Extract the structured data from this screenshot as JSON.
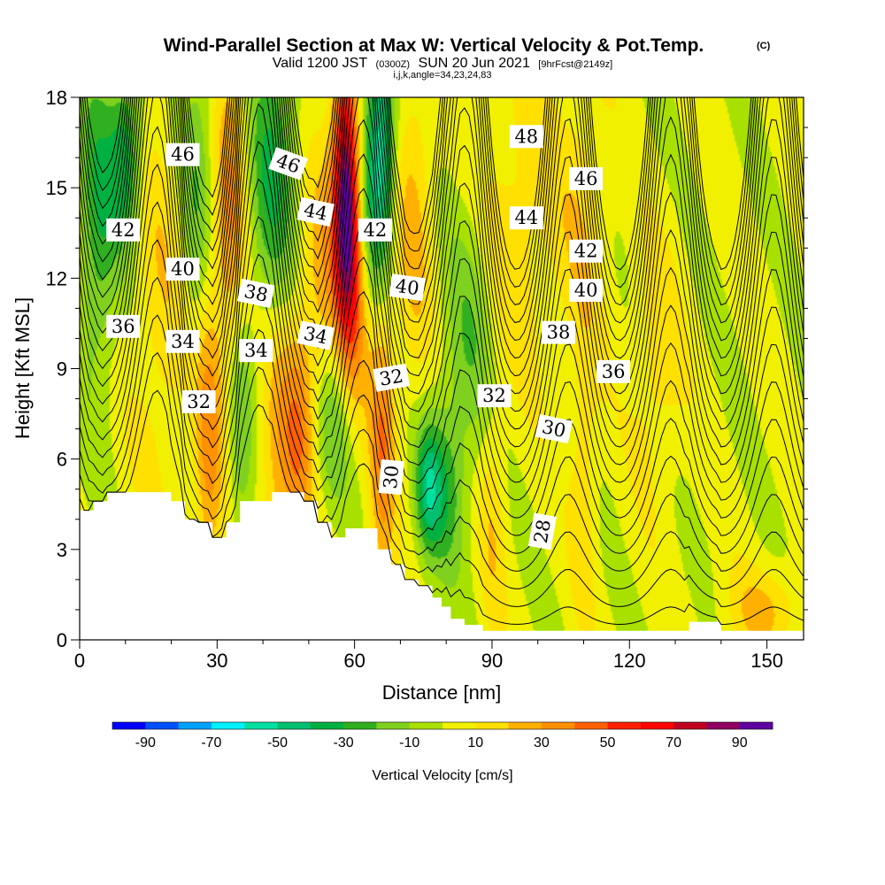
{
  "chart_data": {
    "type": "heatmap",
    "title": "Wind-Parallel Section at Max W: Vertical Velocity & Pot.Temp.",
    "title_suffix": "(C)",
    "subtitle_main": "Valid 1200 JST",
    "subtitle_utc": "(0300Z)",
    "subtitle_date": "SUN 20 Jun 2021",
    "subtitle_fcst": "[9hrFcst@2149z]",
    "subtitle_line2": "i,j,k,angle=34,23,24,83",
    "xlabel": "Distance [nm]",
    "ylabel": "Height [Kft MSL]",
    "xlim": [
      0,
      158
    ],
    "ylim": [
      0,
      18
    ],
    "x_ticks": [
      0,
      30,
      60,
      90,
      120,
      150
    ],
    "y_ticks": [
      0,
      3,
      6,
      9,
      12,
      15,
      18
    ],
    "colorbar": {
      "label": "Vertical Velocity [cm/s]",
      "tick_values": [
        -90,
        -70,
        -50,
        -30,
        -10,
        10,
        30,
        50,
        70,
        90
      ],
      "tick_labels": [
        "-90",
        "-70",
        "-50",
        "-30",
        "-10",
        "10",
        "30",
        "50",
        "70",
        "90"
      ],
      "bounds": [
        -100,
        -90,
        -80,
        -70,
        -60,
        -50,
        -40,
        -30,
        -20,
        -10,
        0,
        10,
        20,
        30,
        40,
        50,
        60,
        70,
        80,
        90,
        100
      ],
      "colors": [
        "#0000ff",
        "#0050ff",
        "#00a0ff",
        "#00f0ff",
        "#00e0a0",
        "#00c070",
        "#00b040",
        "#30b020",
        "#80d020",
        "#a8e000",
        "#f0f000",
        "#ffe000",
        "#ffb000",
        "#ff9000",
        "#ff6000",
        "#ff2000",
        "#ff0000",
        "#c00020",
        "#900060",
        "#6000a0"
      ]
    },
    "velocity_features": [
      {
        "x": 4,
        "z": 14,
        "w": -30,
        "sx": 3,
        "sz": 4
      },
      {
        "x": 10,
        "z": 16,
        "w": -40,
        "sx": 2.5,
        "sz": 2
      },
      {
        "x": 18,
        "z": 11,
        "w": 15,
        "sx": 5,
        "sz": 5
      },
      {
        "x": 26,
        "z": 15,
        "w": -25,
        "sx": 3,
        "sz": 4
      },
      {
        "x": 28,
        "z": 7,
        "w": 30,
        "sx": 2,
        "sz": 4
      },
      {
        "x": 33,
        "z": 14,
        "w": 30,
        "sx": 3,
        "sz": 5
      },
      {
        "x": 35,
        "z": 7,
        "w": -25,
        "sx": 2,
        "sz": 3
      },
      {
        "x": 42,
        "z": 15,
        "w": -35,
        "sx": 4,
        "sz": 4
      },
      {
        "x": 43,
        "z": 7,
        "w": 25,
        "sx": 3,
        "sz": 4
      },
      {
        "x": 48,
        "z": 7,
        "w": 30,
        "sx": 2.5,
        "sz": 3
      },
      {
        "x": 53,
        "z": 12,
        "w": 20,
        "sx": 3,
        "sz": 4
      },
      {
        "x": 55,
        "z": 7,
        "w": -25,
        "sx": 3,
        "sz": 2
      },
      {
        "x": 58,
        "z": 15,
        "w": 80,
        "sx": 2,
        "sz": 3
      },
      {
        "x": 60,
        "z": 12,
        "w": 40,
        "sx": 2.5,
        "sz": 3
      },
      {
        "x": 63,
        "z": 15,
        "w": -30,
        "sx": 2,
        "sz": 3
      },
      {
        "x": 66,
        "z": 16,
        "w": -55,
        "sx": 2,
        "sz": 3
      },
      {
        "x": 66,
        "z": 7,
        "w": 35,
        "sx": 2,
        "sz": 4
      },
      {
        "x": 73,
        "z": 14,
        "w": 20,
        "sx": 3,
        "sz": 4
      },
      {
        "x": 76,
        "z": 5,
        "w": -40,
        "sx": 2,
        "sz": 1.5
      },
      {
        "x": 80,
        "z": 5,
        "w": -25,
        "sx": 3,
        "sz": 2
      },
      {
        "x": 85,
        "z": 10,
        "w": -20,
        "sx": 4,
        "sz": 3
      },
      {
        "x": 90,
        "z": 4,
        "w": 15,
        "sx": 2,
        "sz": 3
      },
      {
        "x": 96,
        "z": 14,
        "w": 15,
        "sx": 6,
        "sz": 4
      },
      {
        "x": 110,
        "z": 14,
        "w": 15,
        "sx": 4,
        "sz": 4
      },
      {
        "x": 110,
        "z": 5,
        "w": 15,
        "sx": 2,
        "sz": 3
      },
      {
        "x": 126,
        "z": 9,
        "w": 15,
        "sx": 4,
        "sz": 3
      },
      {
        "x": 150,
        "z": 1,
        "w": 20,
        "sx": 6,
        "sz": 1
      }
    ],
    "terrain": [
      [
        0,
        4.3
      ],
      [
        3,
        4.3
      ],
      [
        3,
        4.6
      ],
      [
        6,
        4.6
      ],
      [
        6,
        4.9
      ],
      [
        20,
        4.9
      ],
      [
        20,
        4.6
      ],
      [
        23,
        4.6
      ],
      [
        23,
        4.0
      ],
      [
        26,
        4.0
      ],
      [
        26,
        3.9
      ],
      [
        29,
        3.9
      ],
      [
        29,
        3.4
      ],
      [
        32,
        3.4
      ],
      [
        32,
        3.9
      ],
      [
        35,
        3.9
      ],
      [
        35,
        4.6
      ],
      [
        42,
        4.6
      ],
      [
        42,
        4.9
      ],
      [
        49,
        4.9
      ],
      [
        49,
        4.6
      ],
      [
        52,
        4.6
      ],
      [
        52,
        3.9
      ],
      [
        55,
        3.9
      ],
      [
        55,
        3.4
      ],
      [
        58,
        3.4
      ],
      [
        58,
        3.7
      ],
      [
        65,
        3.7
      ],
      [
        65,
        3.0
      ],
      [
        68,
        3.0
      ],
      [
        68,
        2.5
      ],
      [
        71,
        2.5
      ],
      [
        71,
        2.0
      ],
      [
        74,
        2.0
      ],
      [
        74,
        1.8
      ],
      [
        77,
        1.8
      ],
      [
        77,
        1.4
      ],
      [
        79,
        1.4
      ],
      [
        79,
        1.1
      ],
      [
        81,
        1.1
      ],
      [
        81,
        0.7
      ],
      [
        84,
        0.7
      ],
      [
        84,
        0.5
      ],
      [
        88,
        0.5
      ],
      [
        88,
        0.3
      ],
      [
        133,
        0.3
      ],
      [
        133,
        0.6
      ],
      [
        140,
        0.6
      ],
      [
        140,
        0.3
      ],
      [
        158,
        0.3
      ]
    ],
    "theta_levels": [
      28,
      29,
      30,
      31,
      32,
      33,
      34,
      35,
      36,
      37,
      38,
      39,
      40,
      41,
      42,
      43,
      44,
      45,
      46,
      47,
      48
    ],
    "contour_labels": [
      {
        "text": "46",
        "x": 22.5,
        "z": 16.1,
        "angle": 0
      },
      {
        "text": "46",
        "x": 45.5,
        "z": 15.8,
        "angle": 20
      },
      {
        "text": "48",
        "x": 97.5,
        "z": 16.7,
        "angle": 0
      },
      {
        "text": "46",
        "x": 110.5,
        "z": 15.3,
        "angle": 0
      },
      {
        "text": "44",
        "x": 51.5,
        "z": 14.2,
        "angle": 12
      },
      {
        "text": "44",
        "x": 97.5,
        "z": 14.0,
        "angle": 0
      },
      {
        "text": "42",
        "x": 9.5,
        "z": 13.6,
        "angle": 0
      },
      {
        "text": "42",
        "x": 64.5,
        "z": 13.6,
        "angle": 0
      },
      {
        "text": "42",
        "x": 110.5,
        "z": 12.9,
        "angle": 0
      },
      {
        "text": "40",
        "x": 22.5,
        "z": 12.3,
        "angle": 0
      },
      {
        "text": "40",
        "x": 71.5,
        "z": 11.7,
        "angle": 8
      },
      {
        "text": "40",
        "x": 110.5,
        "z": 11.6,
        "angle": 0
      },
      {
        "text": "38",
        "x": 38.5,
        "z": 11.5,
        "angle": 12
      },
      {
        "text": "38",
        "x": 104.5,
        "z": 10.2,
        "angle": 0
      },
      {
        "text": "36",
        "x": 9.5,
        "z": 10.4,
        "angle": 0
      },
      {
        "text": "36",
        "x": 116.5,
        "z": 8.9,
        "angle": 0
      },
      {
        "text": "34",
        "x": 22.5,
        "z": 9.9,
        "angle": 0
      },
      {
        "text": "34",
        "x": 51.5,
        "z": 10.1,
        "angle": 12
      },
      {
        "text": "34",
        "x": 38.5,
        "z": 9.6,
        "angle": 0
      },
      {
        "text": "32",
        "x": 26.0,
        "z": 7.9,
        "angle": 0
      },
      {
        "text": "32",
        "x": 68.0,
        "z": 8.7,
        "angle": -10
      },
      {
        "text": "32",
        "x": 90.5,
        "z": 8.1,
        "angle": 0
      },
      {
        "text": "30",
        "x": 103.5,
        "z": 7.0,
        "angle": 12
      },
      {
        "text": "30",
        "x": 68.0,
        "z": 5.4,
        "angle": -85
      },
      {
        "text": "28",
        "x": 101.0,
        "z": 3.6,
        "angle": -80
      }
    ]
  }
}
